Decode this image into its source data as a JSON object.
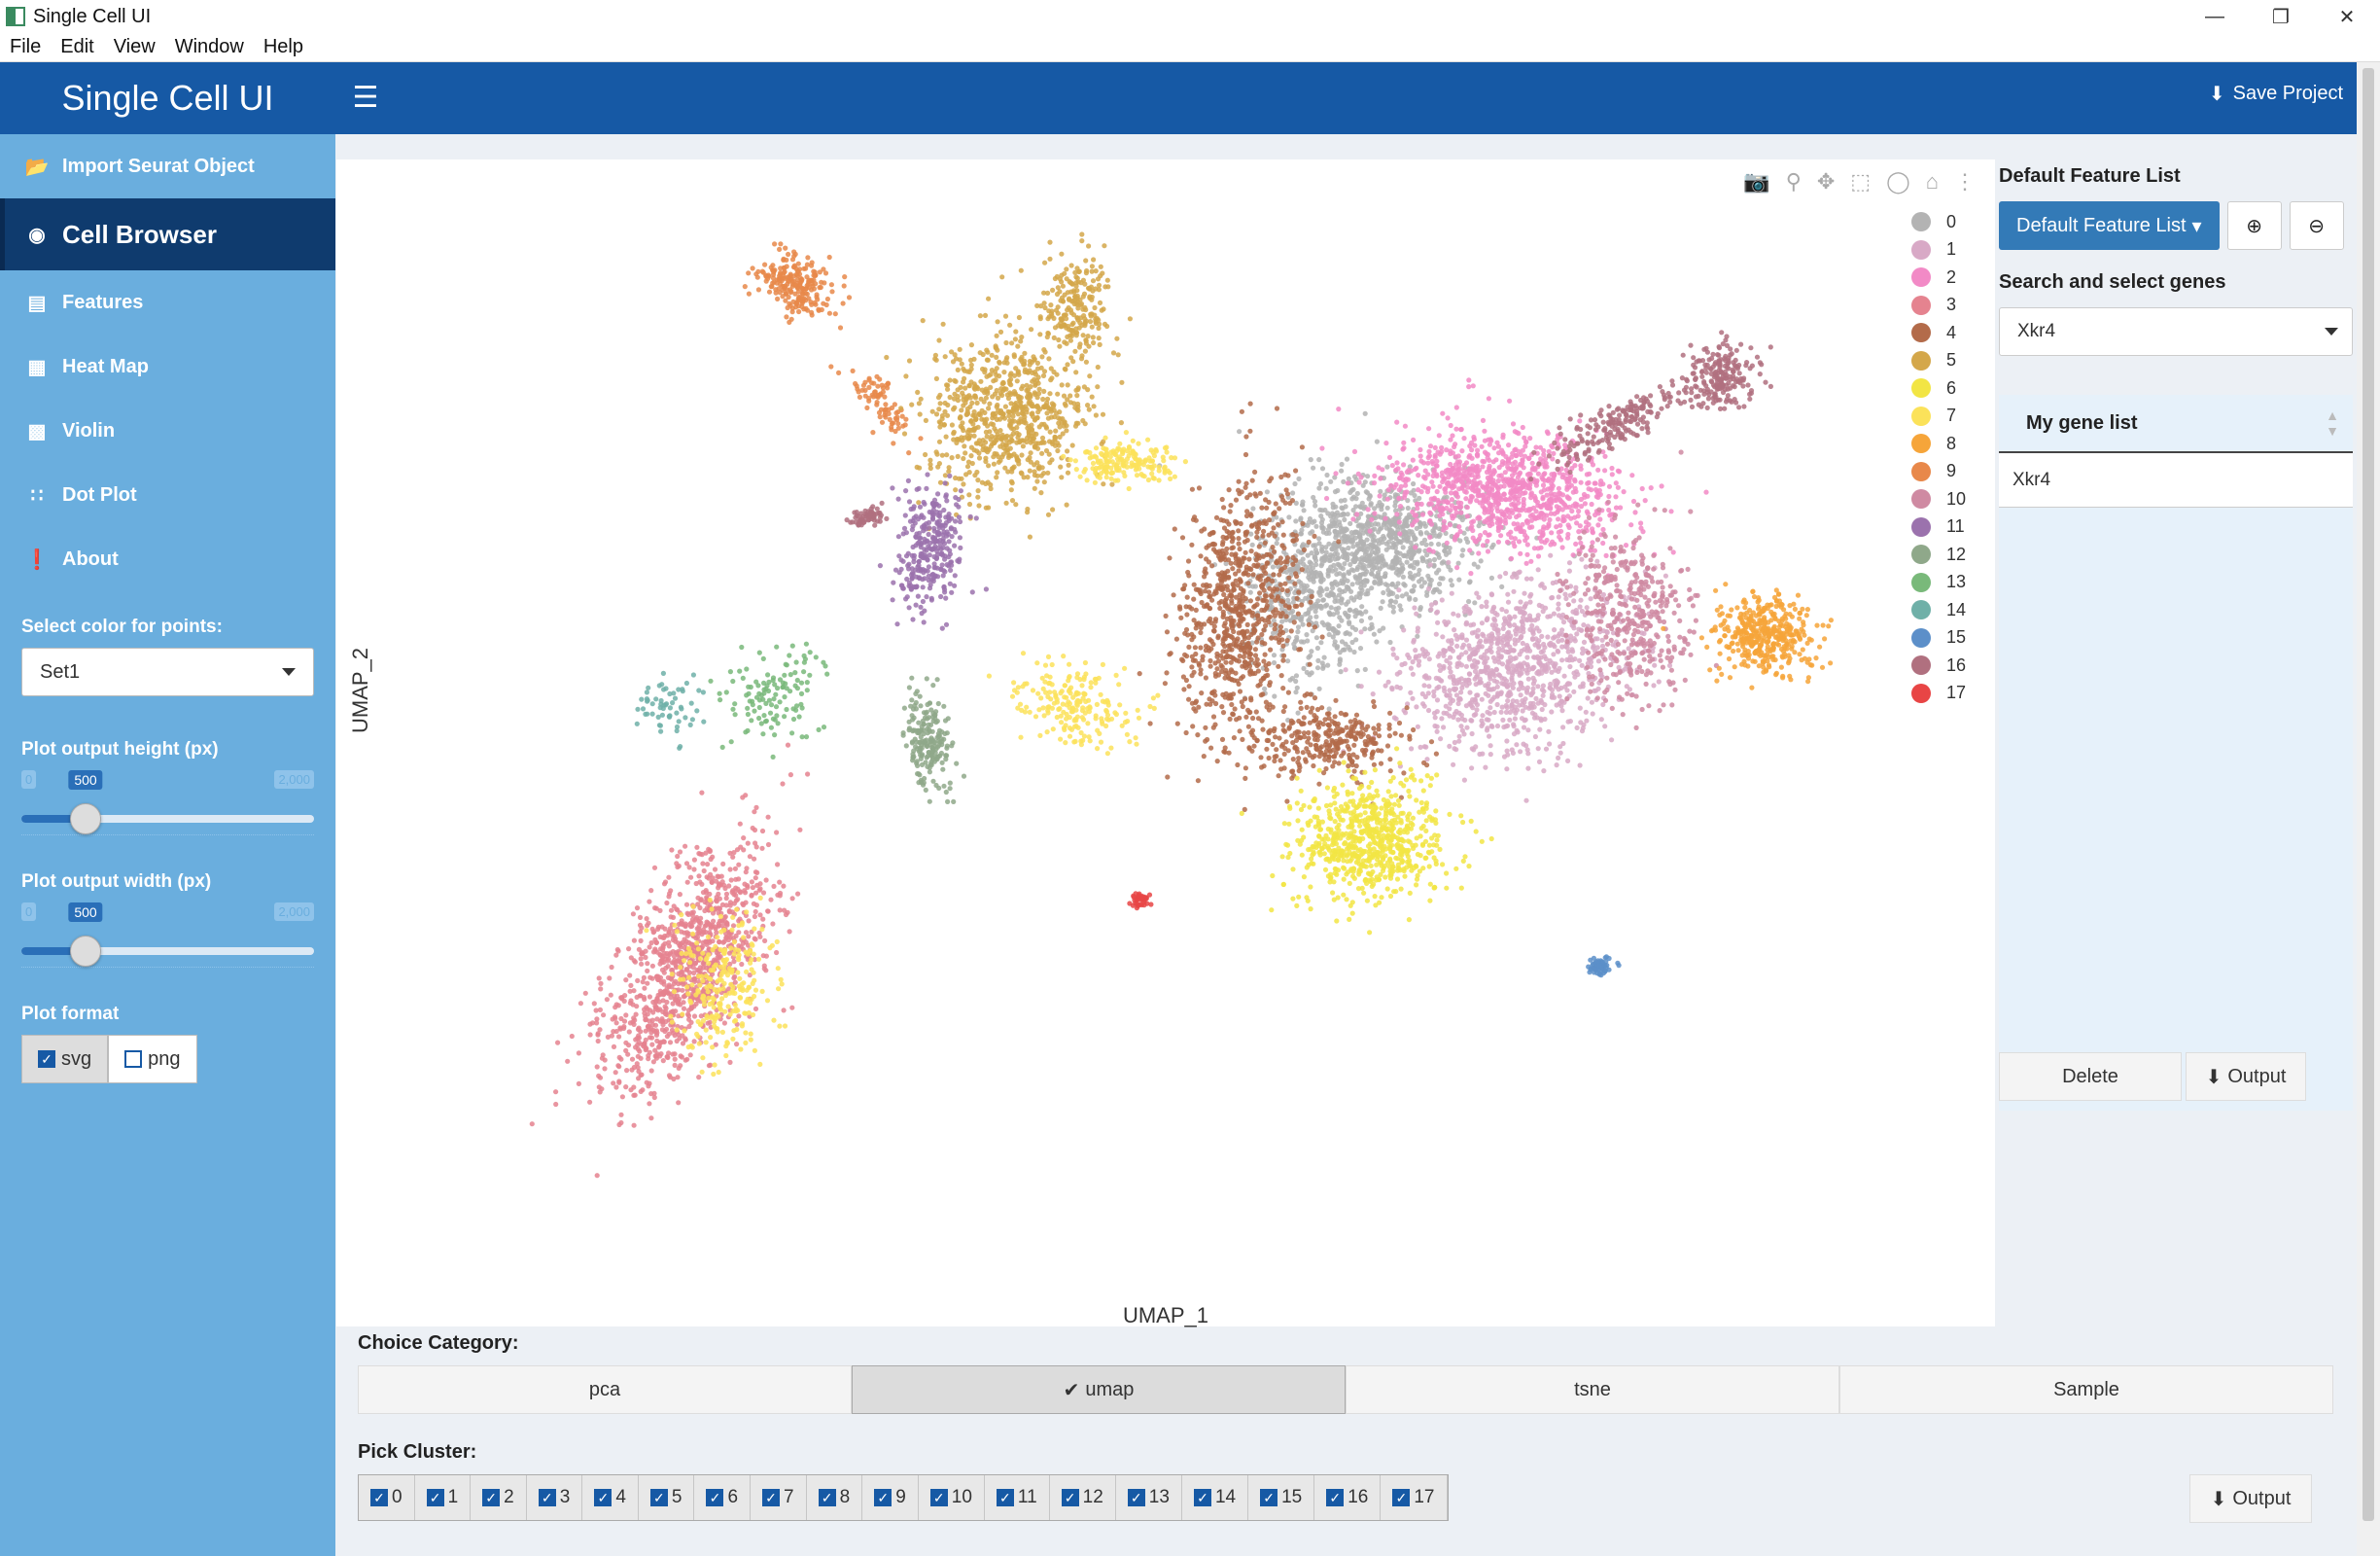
{
  "window": {
    "title": "Single Cell UI"
  },
  "menu": [
    "File",
    "Edit",
    "View",
    "Window",
    "Help"
  ],
  "header": {
    "brand": "Single Cell UI",
    "save_label": "Save Project"
  },
  "sidebar": {
    "nav": [
      {
        "label": "Import Seurat Object",
        "icon": "folder-open-icon"
      },
      {
        "label": "Cell Browser",
        "icon": "eye-icon",
        "active": true
      },
      {
        "label": "Features",
        "icon": "list-icon"
      },
      {
        "label": "Heat Map",
        "icon": "grid-icon"
      },
      {
        "label": "Violin",
        "icon": "bar-chart-icon"
      },
      {
        "label": "Dot Plot",
        "icon": "dot-grid-icon"
      },
      {
        "label": "About",
        "icon": "info-icon"
      }
    ],
    "color_label": "Select color for points:",
    "color_value": "Set1",
    "height_label": "Plot output height (px)",
    "height_value": "500",
    "width_label": "Plot output width (px)",
    "width_value": "500",
    "slider_min": "0",
    "slider_max": "2,000",
    "format_label": "Plot format",
    "formats": [
      {
        "label": "svg",
        "checked": true
      },
      {
        "label": "png",
        "checked": false
      }
    ]
  },
  "plot": {
    "xlabel": "UMAP_1",
    "ylabel": "UMAP_2",
    "modebar": [
      "camera-icon",
      "zoom-icon",
      "pan-icon",
      "box-select-icon",
      "lasso-icon",
      "home-icon",
      "spike-icon"
    ]
  },
  "chart_data": {
    "type": "scatter",
    "xlabel": "UMAP_1",
    "ylabel": "UMAP_2",
    "grid": false,
    "legend_position": "right",
    "series": [
      {
        "name": "0",
        "color": "#b3b3b3"
      },
      {
        "name": "1",
        "color": "#d8a9c6"
      },
      {
        "name": "2",
        "color": "#f28ac6"
      },
      {
        "name": "3",
        "color": "#e5838f"
      },
      {
        "name": "4",
        "color": "#b36b4a"
      },
      {
        "name": "5",
        "color": "#d4a74a"
      },
      {
        "name": "6",
        "color": "#f2e544"
      },
      {
        "name": "7",
        "color": "#fbe25a"
      },
      {
        "name": "8",
        "color": "#f6a53a"
      },
      {
        "name": "9",
        "color": "#e8884a"
      },
      {
        "name": "10",
        "color": "#cf8aa2"
      },
      {
        "name": "11",
        "color": "#9b72ad"
      },
      {
        "name": "12",
        "color": "#8fa88a"
      },
      {
        "name": "13",
        "color": "#79b97a"
      },
      {
        "name": "14",
        "color": "#6fb0a8"
      },
      {
        "name": "15",
        "color": "#5c8fc9"
      },
      {
        "name": "16",
        "color": "#b0707f"
      },
      {
        "name": "17",
        "color": "#e84545"
      }
    ]
  },
  "right": {
    "default_list_label": "Default Feature List",
    "default_list_button": "Default Feature List",
    "search_label": "Search and select genes",
    "search_value": "Xkr4",
    "gene_list_header": "My gene list",
    "gene_list": [
      "Xkr4"
    ],
    "delete_label": "Delete",
    "output_label": "Output"
  },
  "bottom": {
    "category_label": "Choice Category:",
    "categories": [
      {
        "label": "pca",
        "active": false
      },
      {
        "label": "umap",
        "active": true
      },
      {
        "label": "tsne",
        "active": false
      },
      {
        "label": "Sample",
        "active": false
      }
    ],
    "cluster_label": "Pick Cluster:",
    "clusters": [
      "0",
      "1",
      "2",
      "3",
      "4",
      "5",
      "6",
      "7",
      "8",
      "9",
      "10",
      "11",
      "12",
      "13",
      "14",
      "15",
      "16",
      "17"
    ],
    "output_label": "Output"
  }
}
